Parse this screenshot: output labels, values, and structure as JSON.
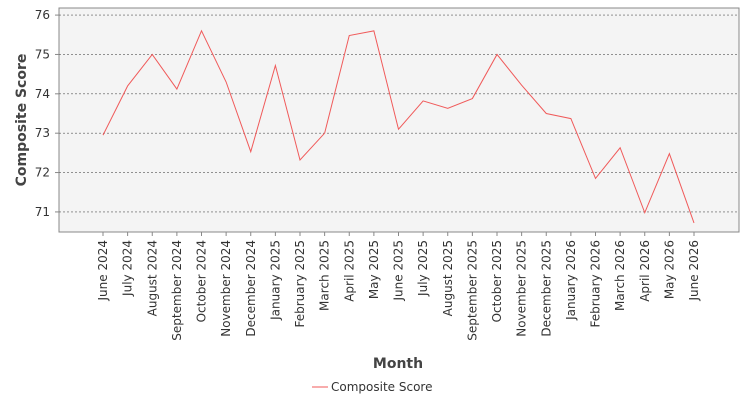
{
  "chart_data": {
    "type": "line",
    "x_label": "Month",
    "y_label": "Composite Score",
    "categories": [
      "June 2024",
      "July 2024",
      "August 2024",
      "September 2024",
      "October 2024",
      "November 2024",
      "December 2024",
      "January 2025",
      "February 2025",
      "March 2025",
      "April 2025",
      "May 2025",
      "June 2025",
      "July 2025",
      "August 2025",
      "September 2025",
      "October 2025",
      "November 2025",
      "December 2025",
      "January 2026",
      "February 2026",
      "March 2026",
      "April 2026",
      "May 2026",
      "June 2026"
    ],
    "series": [
      {
        "name": "Composite Score",
        "color": "#f05a5a",
        "values": [
          72.95,
          74.2,
          75.0,
          74.12,
          75.6,
          74.3,
          72.53,
          74.72,
          72.32,
          73.0,
          75.48,
          75.6,
          73.1,
          73.82,
          73.63,
          73.88,
          75.0,
          74.22,
          73.5,
          73.37,
          71.85,
          72.63,
          70.98,
          72.48,
          70.72
        ]
      }
    ],
    "ylim": [
      70.49,
      76.18
    ],
    "yticks": [
      71,
      72,
      73,
      74,
      75,
      76
    ],
    "grid": true,
    "legend": "bottom"
  }
}
